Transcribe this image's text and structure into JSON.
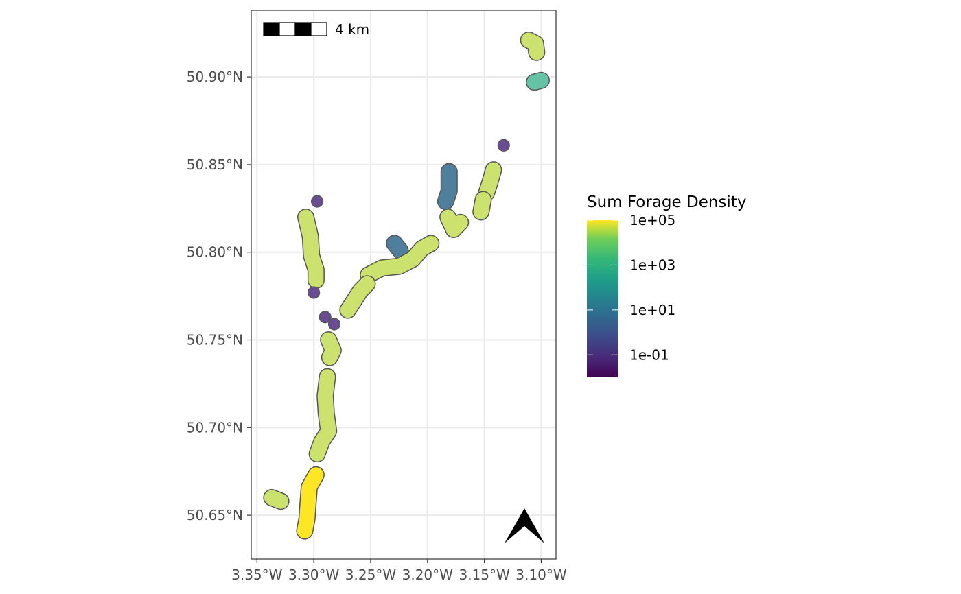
{
  "colors": {
    "yellow": "#fde725",
    "yellow_green": "#c2df6e",
    "light_green": "#cbe36e",
    "green": "#9fd66a",
    "teal": "#66c2a5",
    "blue_teal": "#3f8ea2",
    "steel": "#4e7f9c",
    "purple": "#6a4c93",
    "outline": "#555555",
    "grid": "#ebebeb",
    "panel_border": "#333333"
  },
  "chart_data": {
    "type": "map",
    "x_axis": {
      "ticks": [
        {
          "value": -3.35,
          "label": "3.35°W"
        },
        {
          "value": -3.3,
          "label": "3.30°W"
        },
        {
          "value": -3.25,
          "label": "3.25°W"
        },
        {
          "value": -3.2,
          "label": "3.20°W"
        },
        {
          "value": -3.15,
          "label": "3.15°W"
        },
        {
          "value": -3.1,
          "label": "3.10°W"
        }
      ],
      "lim": [
        -3.355,
        -3.087
      ]
    },
    "y_axis": {
      "ticks": [
        {
          "value": 50.65,
          "label": "50.65°N"
        },
        {
          "value": 50.7,
          "label": "50.70°N"
        },
        {
          "value": 50.75,
          "label": "50.75°N"
        },
        {
          "value": 50.8,
          "label": "50.80°N"
        },
        {
          "value": 50.85,
          "label": "50.85°N"
        },
        {
          "value": 50.9,
          "label": "50.90°N"
        }
      ],
      "lim": [
        50.625,
        50.938
      ]
    },
    "grid": true,
    "scale_bar": {
      "label": "4 km"
    },
    "north_arrow": {
      "position": "bottom-right"
    },
    "legend": {
      "title": "Sum Forage Density",
      "scale": "log10",
      "palette": "viridis",
      "range": [
        0.01,
        100000
      ],
      "labels": [
        {
          "value": 100000,
          "label": "1e+05"
        },
        {
          "value": 1000,
          "label": "1e+03"
        },
        {
          "value": 10,
          "label": "1e+01"
        },
        {
          "value": 0.1,
          "label": "1e-01"
        }
      ],
      "placement": "right"
    },
    "features": [
      {
        "name": "patch",
        "color": "light_green",
        "path": [
          [
            -3.111,
            50.921
          ],
          [
            -3.105,
            50.919
          ],
          [
            -3.104,
            50.914
          ]
        ]
      },
      {
        "name": "patch",
        "color": "teal",
        "path": [
          [
            -3.106,
            50.897
          ],
          [
            -3.1,
            50.898
          ]
        ]
      },
      {
        "name": "patch",
        "color": "purple",
        "path": [
          [
            -3.133,
            50.861
          ]
        ]
      },
      {
        "name": "patch",
        "color": "light_green",
        "path": [
          [
            -3.142,
            50.847
          ],
          [
            -3.145,
            50.84
          ],
          [
            -3.148,
            50.834
          ]
        ]
      },
      {
        "name": "patch",
        "color": "light_green",
        "path": [
          [
            -3.151,
            50.83
          ],
          [
            -3.153,
            50.823
          ]
        ]
      },
      {
        "name": "patch",
        "color": "steel",
        "path": [
          [
            -3.181,
            50.846
          ],
          [
            -3.181,
            50.835
          ],
          [
            -3.184,
            50.829
          ]
        ]
      },
      {
        "name": "patch",
        "color": "light_green",
        "path": [
          [
            -3.182,
            50.82
          ],
          [
            -3.177,
            50.813
          ],
          [
            -3.171,
            50.817
          ]
        ]
      },
      {
        "name": "patch",
        "color": "steel",
        "path": [
          [
            -3.229,
            50.805
          ],
          [
            -3.224,
            50.801
          ]
        ]
      },
      {
        "name": "patch",
        "color": "light_green",
        "path": [
          [
            -3.252,
            50.787
          ],
          [
            -3.24,
            50.791
          ],
          [
            -3.225,
            50.792
          ],
          [
            -3.213,
            50.796
          ],
          [
            -3.205,
            50.802
          ],
          [
            -3.197,
            50.805
          ]
        ]
      },
      {
        "name": "patch",
        "color": "light_green",
        "path": [
          [
            -3.27,
            50.767
          ],
          [
            -3.264,
            50.773
          ],
          [
            -3.259,
            50.778
          ],
          [
            -3.253,
            50.782
          ]
        ]
      },
      {
        "name": "patch",
        "color": "purple",
        "path": [
          [
            -3.297,
            50.829
          ]
        ]
      },
      {
        "name": "patch",
        "color": "light_green",
        "path": [
          [
            -3.307,
            50.82
          ],
          [
            -3.303,
            50.809
          ],
          [
            -3.302,
            50.798
          ],
          [
            -3.298,
            50.79
          ],
          [
            -3.298,
            50.784
          ]
        ]
      },
      {
        "name": "patch",
        "color": "purple",
        "path": [
          [
            -3.3,
            50.777
          ]
        ]
      },
      {
        "name": "patch",
        "color": "purple",
        "path": [
          [
            -3.29,
            50.763
          ]
        ]
      },
      {
        "name": "patch",
        "color": "purple",
        "path": [
          [
            -3.282,
            50.759
          ]
        ]
      },
      {
        "name": "patch",
        "color": "light_green",
        "path": [
          [
            -3.287,
            50.75
          ],
          [
            -3.283,
            50.744
          ],
          [
            -3.286,
            50.74
          ]
        ]
      },
      {
        "name": "patch",
        "color": "light_green",
        "path": [
          [
            -3.288,
            50.729
          ],
          [
            -3.29,
            50.718
          ],
          [
            -3.289,
            50.708
          ],
          [
            -3.287,
            50.698
          ],
          [
            -3.293,
            50.692
          ],
          [
            -3.297,
            50.685
          ]
        ]
      },
      {
        "name": "patch",
        "color": "yellow",
        "path": [
          [
            -3.298,
            50.673
          ],
          [
            -3.304,
            50.666
          ],
          [
            -3.305,
            50.657
          ],
          [
            -3.306,
            50.648
          ],
          [
            -3.308,
            50.641
          ]
        ]
      },
      {
        "name": "patch",
        "color": "light_green",
        "path": [
          [
            -3.337,
            50.66
          ],
          [
            -3.329,
            50.658
          ]
        ]
      }
    ]
  }
}
